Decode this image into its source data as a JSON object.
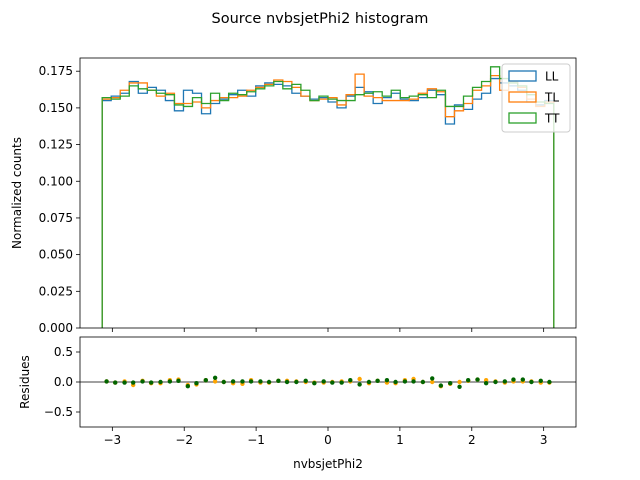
{
  "title": "Source nvbsjetPhi2 histogram",
  "chart_data": [
    {
      "type": "histogram",
      "panel": "main",
      "title": "Source nvbsjetPhi2 histogram",
      "xlabel": "nvbsjetPhi2",
      "ylabel": "Normalized counts",
      "xlim": [
        -3.45,
        3.45
      ],
      "ylim": [
        0,
        0.184
      ],
      "grid": false,
      "legend_position": "top-right",
      "x_ticks": [
        -3,
        -2,
        -1,
        0,
        1,
        2,
        3
      ],
      "x_tick_labels": [
        "−3",
        "−2",
        "−1",
        "0",
        "1",
        "2",
        "3"
      ],
      "y_ticks": [
        0,
        0.025,
        0.05,
        0.075,
        0.1,
        0.125,
        0.15,
        0.175
      ],
      "y_tick_labels": [
        "0.000",
        "0.025",
        "0.050",
        "0.075",
        "0.100",
        "0.125",
        "0.150",
        "0.175"
      ],
      "bin_range": [
        -3.1416,
        3.1416
      ],
      "n_bins": 50,
      "series": [
        {
          "name": "LL",
          "color": "#1f77b4",
          "values": [
            0.155,
            0.158,
            0.16,
            0.168,
            0.16,
            0.164,
            0.162,
            0.155,
            0.148,
            0.162,
            0.16,
            0.146,
            0.153,
            0.156,
            0.159,
            0.162,
            0.158,
            0.165,
            0.167,
            0.166,
            0.165,
            0.16,
            0.158,
            0.156,
            0.157,
            0.154,
            0.15,
            0.158,
            0.164,
            0.161,
            0.153,
            0.157,
            0.16,
            0.156,
            0.155,
            0.157,
            0.162,
            0.159,
            0.139,
            0.152,
            0.149,
            0.156,
            0.16,
            0.17,
            0.167,
            0.165,
            0.162,
            0.154,
            0.152,
            0.155
          ]
        },
        {
          "name": "TL",
          "color": "#ff7f0e",
          "values": [
            0.156,
            0.157,
            0.162,
            0.167,
            0.167,
            0.162,
            0.158,
            0.16,
            0.153,
            0.153,
            0.154,
            0.15,
            0.155,
            0.157,
            0.157,
            0.158,
            0.162,
            0.164,
            0.166,
            0.169,
            0.168,
            0.164,
            0.158,
            0.155,
            0.156,
            0.157,
            0.152,
            0.159,
            0.173,
            0.158,
            0.157,
            0.155,
            0.155,
            0.155,
            0.156,
            0.16,
            0.163,
            0.161,
            0.144,
            0.148,
            0.153,
            0.162,
            0.165,
            0.172,
            0.162,
            0.168,
            0.164,
            0.156,
            0.151,
            0.154
          ]
        },
        {
          "name": "TT",
          "color": "#2ca02c",
          "values": [
            0.157,
            0.156,
            0.158,
            0.165,
            0.163,
            0.162,
            0.16,
            0.159,
            0.152,
            0.151,
            0.157,
            0.153,
            0.16,
            0.155,
            0.16,
            0.159,
            0.161,
            0.163,
            0.165,
            0.168,
            0.163,
            0.166,
            0.162,
            0.155,
            0.158,
            0.156,
            0.155,
            0.155,
            0.159,
            0.16,
            0.161,
            0.158,
            0.162,
            0.157,
            0.158,
            0.159,
            0.157,
            0.162,
            0.151,
            0.151,
            0.158,
            0.164,
            0.168,
            0.178,
            0.17,
            0.167,
            0.165,
            0.159,
            0.154,
            0.153
          ]
        }
      ]
    },
    {
      "type": "scatter",
      "panel": "residues",
      "xlabel": "nvbsjetPhi2",
      "ylabel": "Residues",
      "xlim": [
        -3.45,
        3.45
      ],
      "ylim": [
        -0.75,
        0.75
      ],
      "grid": false,
      "y_ticks": [
        -0.5,
        0.0,
        0.5
      ],
      "y_tick_labels": [
        "−0.5",
        "0.0",
        "0.5"
      ],
      "reference_line": 0,
      "series": [
        {
          "color": "#ffa500",
          "x": [
            -3.08,
            -2.96,
            -2.83,
            -2.71,
            -2.58,
            -2.46,
            -2.33,
            -2.2,
            -2.08,
            -1.95,
            -1.83,
            -1.7,
            -1.57,
            -1.45,
            -1.32,
            -1.19,
            -1.07,
            -0.94,
            -0.82,
            -0.69,
            -0.57,
            -0.44,
            -0.31,
            -0.19,
            -0.06,
            0.06,
            0.19,
            0.31,
            0.44,
            0.57,
            0.69,
            0.82,
            0.94,
            1.07,
            1.19,
            1.32,
            1.45,
            1.57,
            1.7,
            1.83,
            1.95,
            2.08,
            2.2,
            2.33,
            2.46,
            2.58,
            2.71,
            2.83,
            2.96,
            3.08
          ],
          "values": [
            0.01,
            -0.01,
            0.01,
            -0.05,
            0.02,
            -0.02,
            -0.02,
            0.03,
            0.04,
            -0.05,
            -0.04,
            0.03,
            0.01,
            0.0,
            -0.02,
            -0.03,
            0.03,
            -0.01,
            -0.01,
            0.02,
            0.02,
            0.01,
            0.0,
            -0.01,
            -0.01,
            0.0,
            0.01,
            0.01,
            0.05,
            -0.02,
            0.02,
            -0.01,
            -0.02,
            0.03,
            0.05,
            0.0,
            0.0,
            -0.07,
            -0.03,
            0.0,
            0.02,
            0.04,
            0.03,
            0.01,
            -0.01,
            0.01,
            0.01,
            0.01,
            -0.01,
            -0.01
          ]
        },
        {
          "color": "#006400",
          "x": [
            -3.08,
            -2.96,
            -2.83,
            -2.71,
            -2.58,
            -2.46,
            -2.33,
            -2.2,
            -2.08,
            -1.95,
            -1.83,
            -1.7,
            -1.57,
            -1.45,
            -1.32,
            -1.19,
            -1.07,
            -0.94,
            -0.82,
            -0.69,
            -0.57,
            -0.44,
            -0.31,
            -0.19,
            -0.06,
            0.06,
            0.19,
            0.31,
            0.44,
            0.57,
            0.69,
            0.82,
            0.94,
            1.07,
            1.19,
            1.32,
            1.45,
            1.57,
            1.7,
            1.83,
            1.95,
            2.08,
            2.2,
            2.33,
            2.46,
            2.58,
            2.71,
            2.83,
            2.96,
            3.08
          ],
          "values": [
            0.01,
            -0.01,
            -0.01,
            -0.01,
            0.01,
            -0.01,
            0.0,
            0.01,
            0.02,
            -0.07,
            -0.02,
            0.03,
            0.07,
            0.0,
            0.01,
            0.01,
            0.01,
            0.01,
            0.0,
            0.02,
            0.0,
            0.0,
            0.02,
            -0.02,
            0.01,
            -0.01,
            -0.01,
            0.03,
            -0.04,
            0.0,
            0.02,
            0.03,
            0.0,
            0.01,
            0.01,
            0.0,
            0.06,
            -0.06,
            -0.02,
            -0.08,
            0.03,
            0.04,
            -0.02,
            0.0,
            0.01,
            0.04,
            0.04,
            0.0,
            0.02,
            0.0
          ]
        }
      ]
    }
  ]
}
